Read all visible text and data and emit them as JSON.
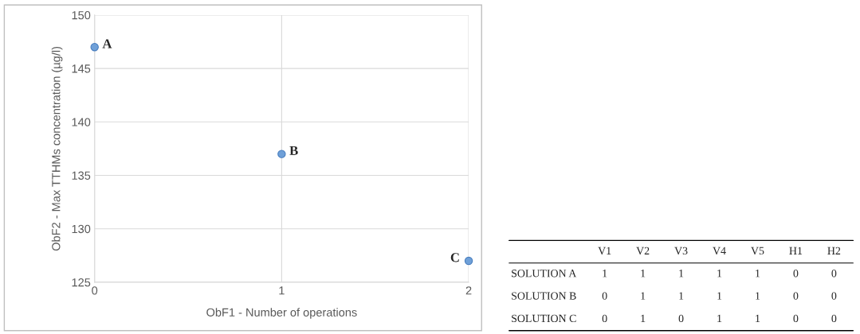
{
  "chart_data": [
    {
      "type": "scatter",
      "xlabel": "ObF1 - Number of operations",
      "ylabel": "ObF2 - Max TTHMs concentration (µg/l)",
      "x": [
        0,
        1,
        2
      ],
      "values": [
        147,
        137,
        127
      ],
      "color": "#6fa0d8",
      "marker": "circle",
      "xlim": [
        0,
        2
      ],
      "xticks": [
        0,
        1,
        2
      ],
      "ylim": [
        125,
        150
      ],
      "yticks": [
        125,
        130,
        135,
        140,
        145,
        150
      ],
      "grid": true,
      "annotations": [
        {
          "text": "A",
          "x": 0,
          "y": 147
        },
        {
          "text": "B",
          "x": 1,
          "y": 137
        },
        {
          "text": "C",
          "x": 2,
          "y": 127
        }
      ]
    },
    {
      "type": "heatmap",
      "categories": [
        "V1",
        "V2",
        "V3",
        "V4",
        "V5",
        "H1",
        "H2"
      ],
      "y_categories": [
        "SOLUTION A",
        "SOLUTION B",
        "SOLUTION C"
      ],
      "cells": [
        [
          1,
          1,
          1,
          1,
          1,
          0,
          0
        ],
        [
          0,
          1,
          1,
          1,
          1,
          0,
          0
        ],
        [
          0,
          1,
          0,
          1,
          1,
          0,
          0
        ]
      ],
      "data_labels": true
    }
  ]
}
